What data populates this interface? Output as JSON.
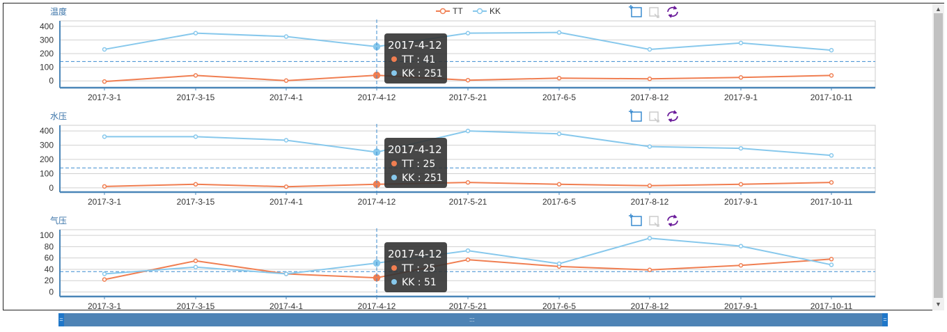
{
  "chart_data": [
    {
      "type": "line",
      "title": "温度",
      "categories": [
        "2017-3-1",
        "2017-3-15",
        "2017-4-1",
        "2017-4-12",
        "2017-5-21",
        "2017-6-5",
        "2017-8-12",
        "2017-9-1",
        "2017-10-11"
      ],
      "series": [
        {
          "name": "TT",
          "values": [
            -5,
            40,
            2,
            41,
            5,
            20,
            15,
            25,
            40
          ]
        },
        {
          "name": "KK",
          "values": [
            231,
            350,
            325,
            251,
            350,
            355,
            231,
            278,
            225
          ]
        }
      ],
      "yticks": [
        0,
        100,
        200,
        300,
        400
      ],
      "ylim": [
        -50,
        440
      ],
      "average_line": 142,
      "tooltip": {
        "date": "2017-4-12",
        "tt": "TT : 41",
        "kk": "KK : 251"
      }
    },
    {
      "type": "line",
      "title": "水压",
      "categories": [
        "2017-3-1",
        "2017-3-15",
        "2017-4-1",
        "2017-4-12",
        "2017-5-21",
        "2017-6-5",
        "2017-8-12",
        "2017-9-1",
        "2017-10-11"
      ],
      "series": [
        {
          "name": "TT",
          "values": [
            10,
            25,
            8,
            25,
            38,
            25,
            15,
            25,
            38
          ]
        },
        {
          "name": "KK",
          "values": [
            360,
            360,
            335,
            251,
            400,
            380,
            290,
            278,
            228
          ]
        }
      ],
      "yticks": [
        0,
        100,
        200,
        300,
        400
      ],
      "ylim": [
        -30,
        440
      ],
      "average_line": 140,
      "tooltip": {
        "date": "2017-4-12",
        "tt": "TT : 25",
        "kk": "KK : 251"
      }
    },
    {
      "type": "line",
      "title": "气压",
      "categories": [
        "2017-3-1",
        "2017-3-15",
        "2017-4-1",
        "2017-4-12",
        "2017-5-21",
        "2017-6-5",
        "2017-8-12",
        "2017-9-1",
        "2017-10-11"
      ],
      "series": [
        {
          "name": "TT",
          "values": [
            22,
            55,
            32,
            25,
            57,
            45,
            39,
            47,
            58
          ]
        },
        {
          "name": "KK",
          "values": [
            32,
            44,
            32,
            51,
            73,
            50,
            95,
            81,
            48
          ]
        }
      ],
      "yticks": [
        0,
        20,
        40,
        60,
        80,
        100
      ],
      "ylim": [
        -8,
        110
      ],
      "average_line": 36,
      "tooltip": {
        "date": "2017-4-12",
        "tt": "TT : 25",
        "kk": "KK : 51"
      }
    }
  ],
  "legend": {
    "items": [
      "TT",
      "KK"
    ],
    "placement": "top-center"
  },
  "colors": {
    "tt": "#f07e51",
    "kk": "#87c8ec",
    "axis": "#4a86b8",
    "grid": "#d0d0d0",
    "tooltip_bg": "#333333",
    "avg_line": "#3a8bcf",
    "zoom_bar": "#4e83b5"
  },
  "toolbox_icons": [
    "data-zoom-icon",
    "zoom-reset-icon",
    "restore-icon"
  ],
  "scrollbar": {
    "up": "▲",
    "down": "▼"
  },
  "zoom": {
    "left_handle": "=",
    "right_handle": "=",
    "grip": ":::"
  }
}
